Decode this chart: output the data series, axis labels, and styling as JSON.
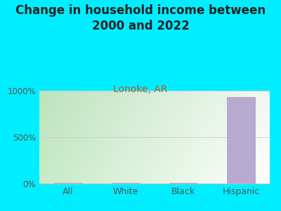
{
  "title": "Change in household income between\n2000 and 2022",
  "subtitle": "Lonoke, AR",
  "categories": [
    "All",
    "White",
    "Black",
    "Hispanic"
  ],
  "values": [
    5,
    5,
    10,
    930
  ],
  "bar_color": "#b8a9d0",
  "background_color": "#00eeff",
  "title_fontsize": 12,
  "subtitle_fontsize": 10,
  "subtitle_color": "#b05a2f",
  "tick_label_color": "#555555",
  "ylim": [
    0,
    1000
  ],
  "yticks": [
    0,
    500,
    1000
  ],
  "ytick_labels": [
    "0%",
    "500%",
    "1000%"
  ],
  "plot_grad_left": "#c8e6c9",
  "plot_grad_right": "#f5fff5"
}
